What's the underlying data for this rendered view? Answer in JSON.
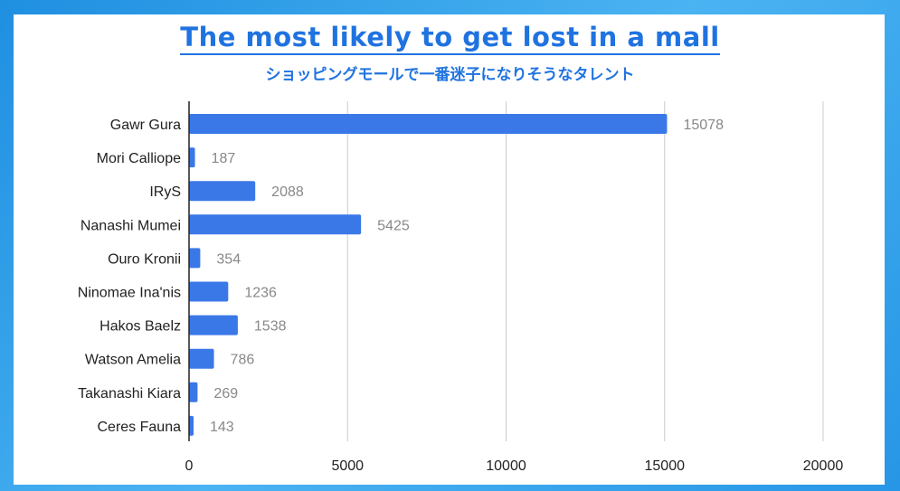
{
  "title": "The most likely to get lost in a mall",
  "subtitle": "ショッピングモールで一番迷子になりそうなタレント",
  "chart_data": {
    "type": "bar",
    "orientation": "horizontal",
    "categories": [
      "Gawr Gura",
      "Mori Calliope",
      "IRyS",
      "Nanashi Mumei",
      "Ouro Kronii",
      "Ninomae Ina'nis",
      "Hakos Baelz",
      "Watson Amelia",
      "Takanashi Kiara",
      "Ceres Fauna"
    ],
    "values": [
      15078,
      187,
      2088,
      5425,
      354,
      1236,
      1538,
      786,
      269,
      143
    ],
    "xlim": [
      0,
      20000
    ],
    "xticks": [
      0,
      5000,
      10000,
      15000,
      20000
    ],
    "grid": true,
    "bar_color": "#3b78e7"
  }
}
